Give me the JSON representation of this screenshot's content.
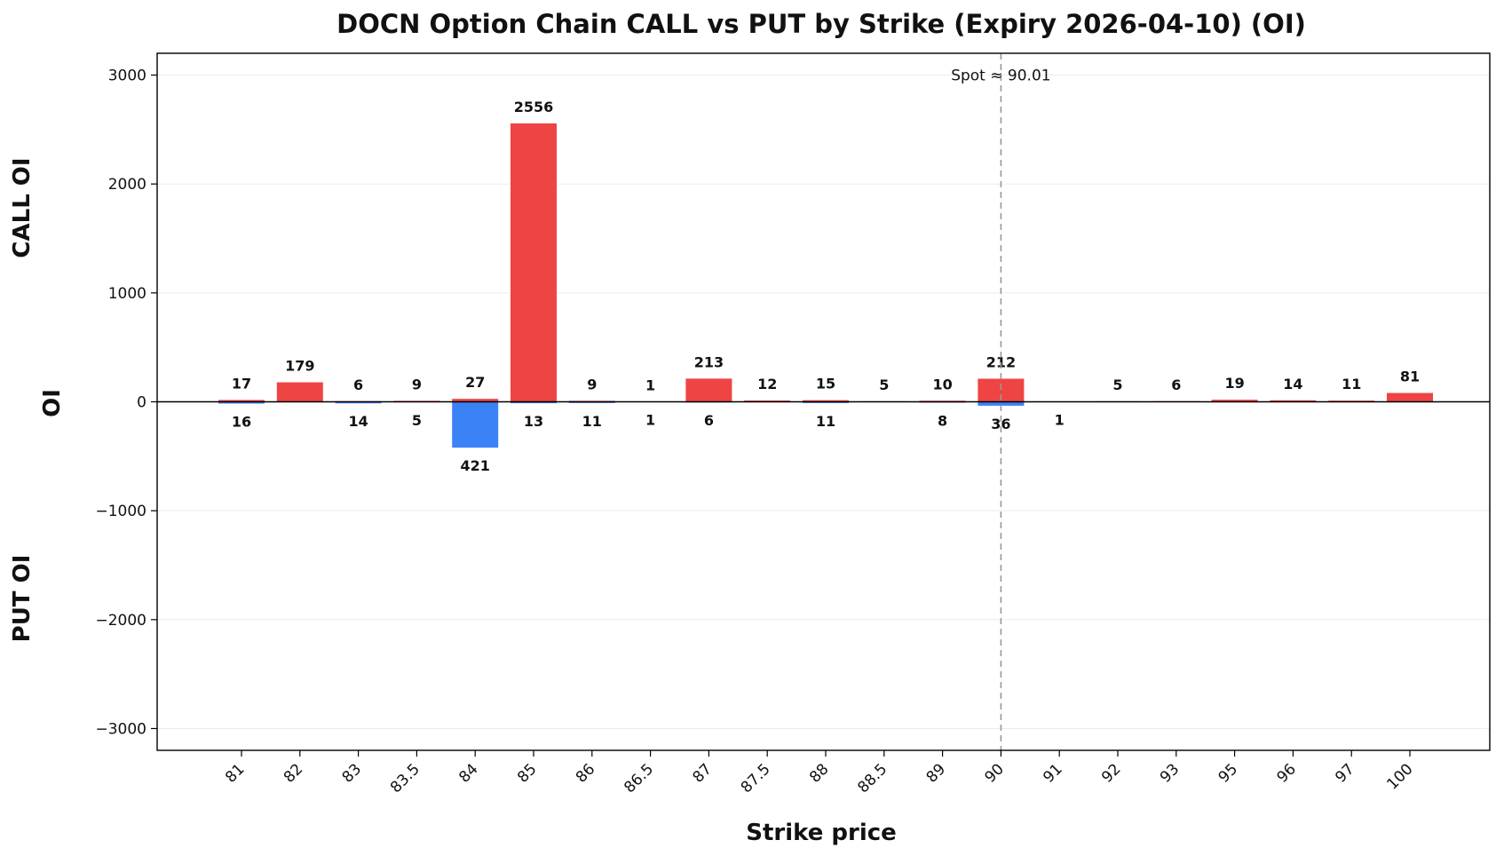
{
  "chart_data": {
    "type": "bar",
    "title": "DOCN Option Chain CALL vs PUT by Strike (Expiry 2026-04-10) (OI)",
    "xlabel": "Strike price",
    "ylabel": "OI",
    "ylabel_top": "CALL OI",
    "ylabel_bottom": "PUT OI",
    "categories": [
      "81",
      "82",
      "83",
      "83.5",
      "84",
      "85",
      "86",
      "86.5",
      "87",
      "87.5",
      "88",
      "88.5",
      "89",
      "90",
      "91",
      "92",
      "93",
      "95",
      "96",
      "97",
      "100"
    ],
    "series": [
      {
        "name": "CALL",
        "color": "#ef4444",
        "values": [
          17,
          179,
          6,
          9,
          27,
          2556,
          9,
          1,
          213,
          12,
          15,
          5,
          10,
          212,
          0,
          5,
          6,
          19,
          14,
          11,
          81
        ]
      },
      {
        "name": "PUT",
        "color": "#3b82f6",
        "values": [
          16,
          0,
          14,
          5,
          421,
          13,
          11,
          1,
          6,
          0,
          11,
          0,
          8,
          36,
          1,
          0,
          0,
          0,
          0,
          0,
          0
        ]
      }
    ],
    "ylim": [
      -3200,
      3200
    ],
    "yticks": [
      3000,
      2000,
      1000,
      0,
      -1000,
      -2000,
      -3000
    ],
    "ytick_labels": [
      "3000",
      "2000",
      "1000",
      "0",
      "−1000",
      "−2000",
      "−3000"
    ],
    "spot": {
      "index": 13,
      "label": "Spot ≈ 90.01"
    },
    "grid": "horizontal",
    "legend": "none"
  }
}
